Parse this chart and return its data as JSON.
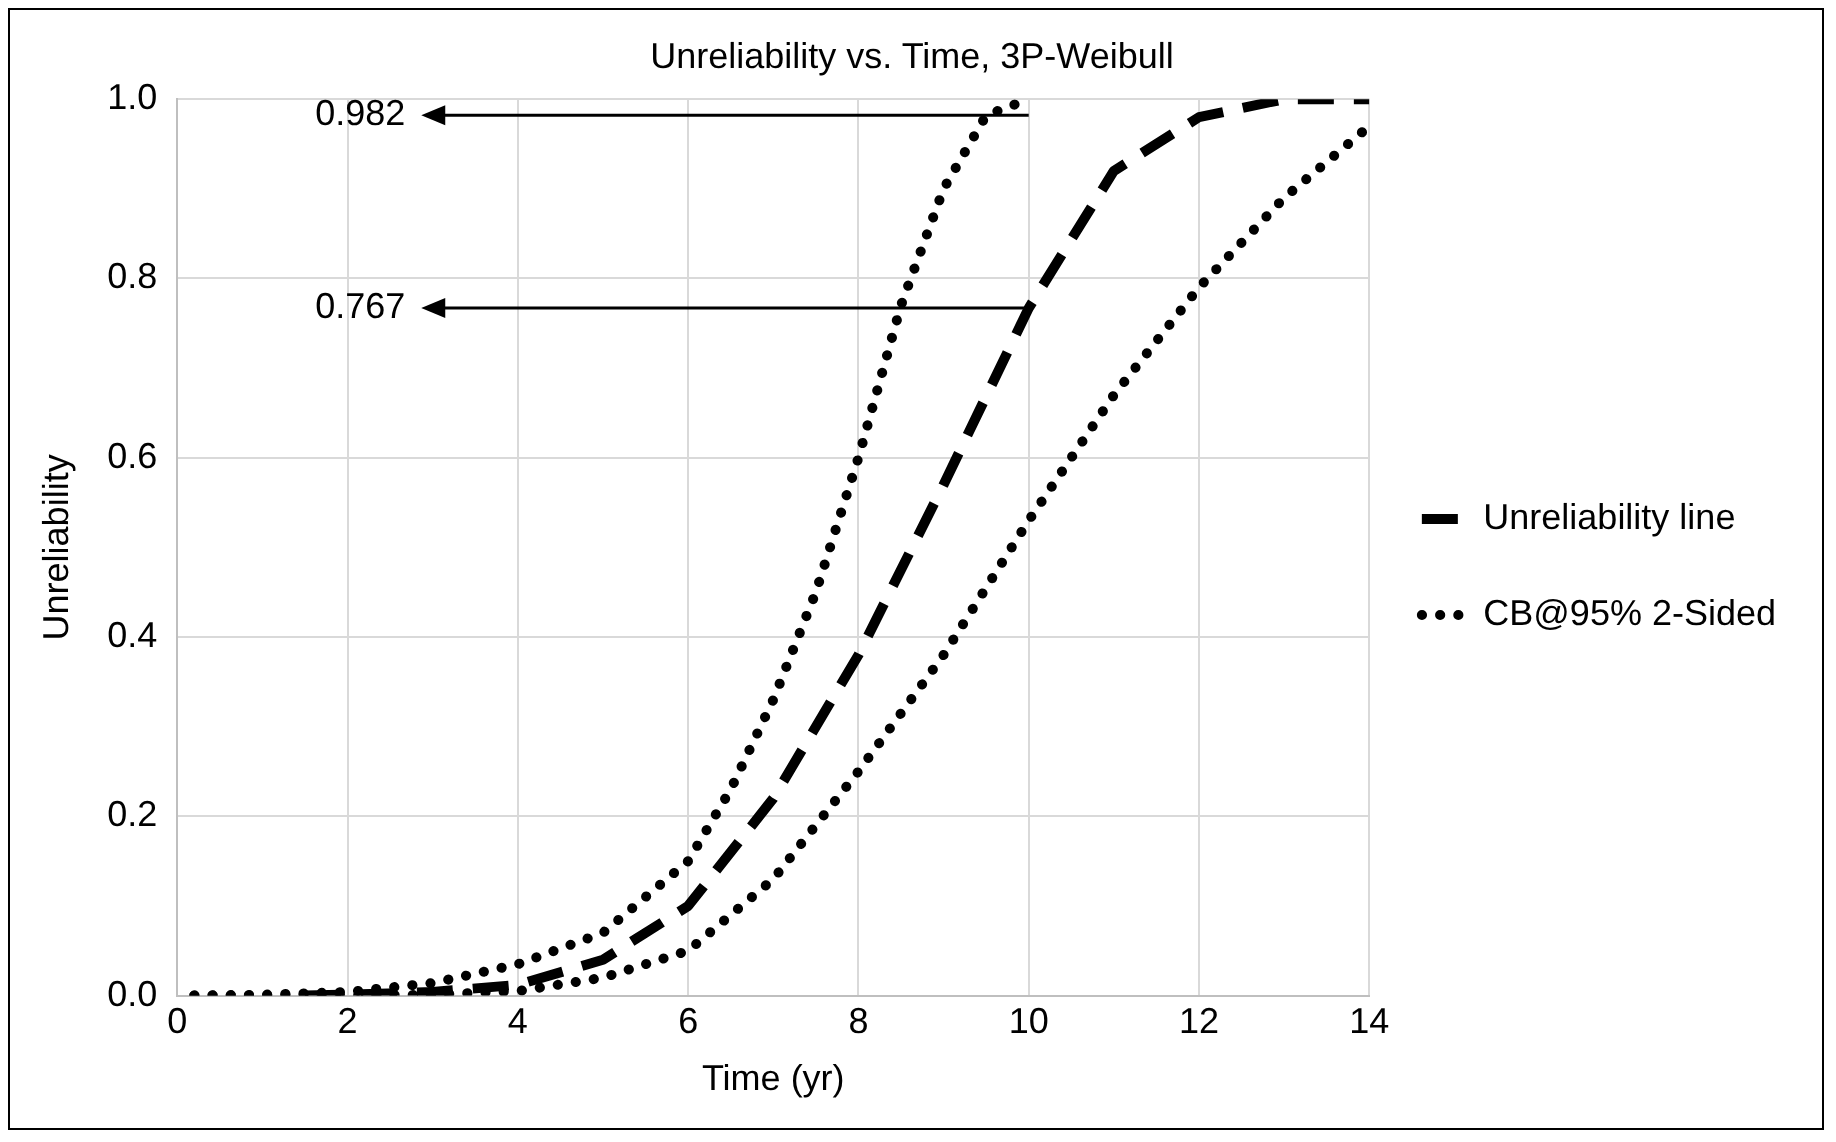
{
  "chart_data": {
    "type": "line",
    "title": "Unreliability vs. Time, 3P-Weibull",
    "xlabel": "Time (yr)",
    "ylabel": "Unreliability",
    "xlim": [
      0,
      14
    ],
    "xticks": [
      0,
      2,
      4,
      6,
      8,
      10,
      12,
      14
    ],
    "ylim": [
      0,
      1
    ],
    "yticks": [
      {
        "value": 0,
        "label": "0.0"
      },
      {
        "value": 0.2,
        "label": "0.2"
      },
      {
        "value": 0.4,
        "label": "0.4"
      },
      {
        "value": 0.6,
        "label": "0.6"
      },
      {
        "value": 0.8,
        "label": "0.8"
      },
      {
        "value": 1,
        "label": "1.0"
      }
    ],
    "grid": true,
    "legend": "right",
    "marker": "none",
    "series": [
      {
        "name": "Unreliability line",
        "color": "#000000",
        "line_style": "dashed",
        "x": [
          1.5,
          2,
          3,
          4,
          5,
          6,
          7,
          8,
          9,
          10,
          11,
          12,
          13,
          14
        ],
        "values": [
          0,
          0.001,
          0.004,
          0.012,
          0.04,
          0.1,
          0.22,
          0.38,
          0.57,
          0.767,
          0.92,
          0.98,
          1.0,
          1.0
        ]
      },
      {
        "name": "CB@95% 2-Sided",
        "color": "#000000",
        "line_style": "dotted",
        "x": [
          0.2,
          1,
          2,
          3,
          4,
          5,
          6,
          6.5,
          7,
          7.5,
          8,
          8.5,
          9,
          9.5,
          10
        ],
        "values": [
          0,
          0.001,
          0.004,
          0.014,
          0.035,
          0.07,
          0.15,
          0.23,
          0.33,
          0.45,
          0.6,
          0.77,
          0.9,
          0.982,
          1.0
        ]
      },
      {
        "color": "#000000",
        "line_style": "dotted",
        "x": [
          0.2,
          2,
          3,
          4,
          5,
          6,
          7,
          8,
          9,
          10,
          11,
          12,
          13,
          14
        ],
        "values": [
          0,
          0,
          0.001,
          0.005,
          0.02,
          0.05,
          0.13,
          0.25,
          0.38,
          0.53,
          0.67,
          0.79,
          0.89,
          0.97
        ]
      }
    ],
    "annotations": [
      {
        "text": "0.982",
        "x": 10,
        "y": 0.982
      },
      {
        "text": "0.767",
        "x": 10,
        "y": 0.767
      }
    ]
  }
}
